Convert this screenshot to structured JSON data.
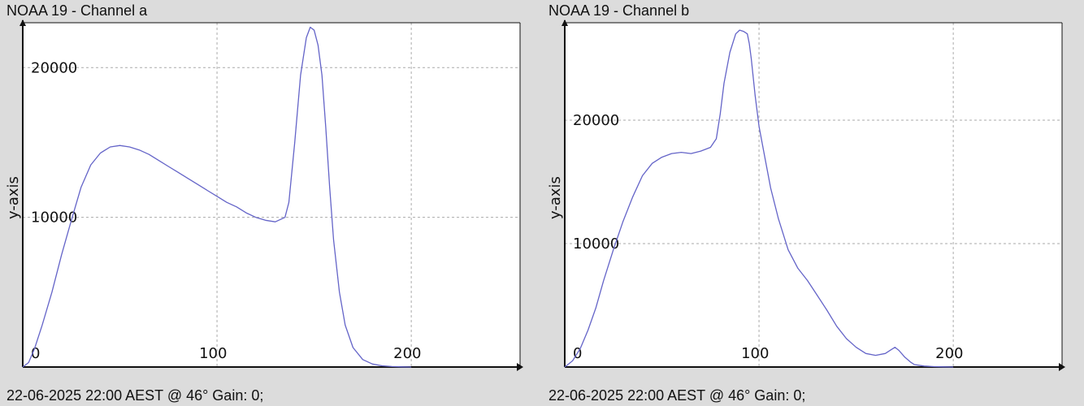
{
  "chart_data": [
    {
      "type": "line",
      "title": "NOAA 19 - Channel a",
      "footer": "22-06-2025 22:00 AEST @ 46° Gain: 0;",
      "xlabel": "",
      "ylabel": "y-axis",
      "xlim": [
        0,
        256
      ],
      "ylim": [
        0,
        23000
      ],
      "grid": true,
      "x_ticks": [
        0,
        100,
        200
      ],
      "y_ticks": [
        10000,
        20000
      ],
      "line_color": "#6464c8",
      "series": [
        {
          "x": [
            0,
            3,
            6,
            10,
            15,
            20,
            25,
            30,
            35,
            40,
            45,
            50,
            55,
            60,
            65,
            70,
            75,
            80,
            85,
            90,
            95,
            100,
            105,
            110,
            115,
            120,
            125,
            130,
            135,
            137,
            140,
            143,
            146,
            148,
            150,
            152,
            154,
            156,
            158,
            160,
            163,
            166,
            170,
            175,
            180,
            185,
            190,
            195,
            200
          ],
          "y": [
            0,
            300,
            1200,
            2800,
            5000,
            7500,
            9800,
            12000,
            13500,
            14300,
            14700,
            14800,
            14700,
            14500,
            14200,
            13800,
            13400,
            13000,
            12600,
            12200,
            11800,
            11400,
            11000,
            10700,
            10300,
            10000,
            9800,
            9700,
            10000,
            11000,
            15000,
            19500,
            22000,
            22700,
            22500,
            21500,
            19500,
            16000,
            12000,
            8500,
            5000,
            2800,
            1300,
            500,
            200,
            80,
            30,
            10,
            0
          ]
        }
      ]
    },
    {
      "type": "line",
      "title": "NOAA 19 - Channel b",
      "footer": "22-06-2025 22:00 AEST @ 46° Gain: 0;",
      "xlabel": "",
      "ylabel": "y-axis",
      "xlim": [
        0,
        256
      ],
      "ylim": [
        0,
        27900
      ],
      "grid": true,
      "x_ticks": [
        0,
        100,
        200
      ],
      "y_ticks": [
        10000,
        20000
      ],
      "line_color": "#6464c8",
      "series": [
        {
          "x": [
            0,
            4,
            8,
            12,
            16,
            20,
            25,
            30,
            35,
            40,
            45,
            50,
            55,
            60,
            65,
            70,
            75,
            78,
            80,
            82,
            85,
            88,
            90,
            92,
            94,
            95,
            96,
            98,
            100,
            103,
            106,
            110,
            115,
            120,
            125,
            130,
            135,
            140,
            145,
            150,
            155,
            160,
            165,
            168,
            170,
            172,
            175,
            178,
            180,
            185,
            190,
            195,
            200
          ],
          "y": [
            0,
            500,
            1500,
            3000,
            4800,
            7000,
            9500,
            11800,
            13800,
            15500,
            16500,
            17000,
            17300,
            17400,
            17300,
            17500,
            17800,
            18500,
            20500,
            23000,
            25500,
            27000,
            27300,
            27200,
            27000,
            26200,
            25000,
            22000,
            19500,
            17000,
            14500,
            12000,
            9500,
            8000,
            7000,
            5800,
            4600,
            3300,
            2300,
            1600,
            1100,
            950,
            1100,
            1400,
            1600,
            1350,
            800,
            400,
            200,
            80,
            30,
            10,
            0
          ]
        }
      ]
    }
  ]
}
